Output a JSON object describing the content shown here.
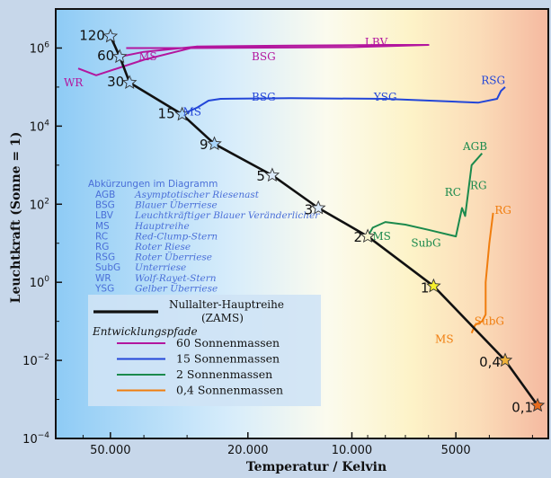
{
  "chart_data": {
    "type": "line",
    "xlabel": "Temperatur / Kelvin",
    "ylabel": "Leuchtkraft (Sonne = 1)",
    "x_scale": "log",
    "x_reversed": true,
    "xlim": [
      72000,
      2700
    ],
    "y_scale": "log",
    "ylim": [
      0.0001,
      10000000
    ],
    "x_ticks": [
      {
        "value": 50000,
        "label": "50.000"
      },
      {
        "value": 20000,
        "label": "20.000"
      },
      {
        "value": 10000,
        "label": "10.000"
      },
      {
        "value": 5000,
        "label": "5000"
      }
    ],
    "y_ticks": [
      {
        "exp": 6,
        "value": 1000000
      },
      {
        "exp": 4,
        "value": 10000
      },
      {
        "exp": 2,
        "value": 100
      },
      {
        "exp": 0,
        "value": 1
      },
      {
        "exp": -2,
        "value": 0.01
      },
      {
        "exp": -4,
        "value": 0.0001
      }
    ],
    "zams": {
      "name": "Nullalter-Hauptreihe (ZAMS)",
      "points": [
        {
          "mass": "120",
          "t": 50000,
          "l": 2000000
        },
        {
          "mass": "60",
          "t": 47000,
          "l": 600000
        },
        {
          "mass": "30",
          "t": 44000,
          "l": 130000
        },
        {
          "mass": "15",
          "t": 31000,
          "l": 20000
        },
        {
          "mass": "9",
          "t": 25000,
          "l": 3500
        },
        {
          "mass": "5",
          "t": 17000,
          "l": 550
        },
        {
          "mass": "3",
          "t": 12500,
          "l": 80
        },
        {
          "mass": "2",
          "t": 9000,
          "l": 15
        },
        {
          "mass": "1",
          "t": 5800,
          "l": 0.8
        },
        {
          "mass": "0,4",
          "t": 3600,
          "l": 0.01
        },
        {
          "mass": "0,1",
          "t": 2900,
          "l": 0.0007
        }
      ]
    },
    "tracks": [
      {
        "name": "60 Sonnenmassen",
        "color": "#b3169e",
        "points": [
          {
            "t": 47000,
            "l": 600000
          },
          {
            "t": 40000,
            "l": 800000
          },
          {
            "t": 28000,
            "l": 1100000
          },
          {
            "t": 15000,
            "l": 1150000
          },
          {
            "t": 8000,
            "l": 1200000
          },
          {
            "t": 6000,
            "l": 1200000
          },
          {
            "t": 10000,
            "l": 1050000
          },
          {
            "t": 30000,
            "l": 1000000
          },
          {
            "t": 45000,
            "l": 1000000
          }
        ]
      },
      {
        "name": "60 Sonnenmassen (WR-Ast)",
        "color": "#b3169e",
        "points": [
          {
            "t": 28000,
            "l": 1100000
          },
          {
            "t": 40000,
            "l": 500000
          },
          {
            "t": 55000,
            "l": 200000
          },
          {
            "t": 62000,
            "l": 300000
          }
        ]
      },
      {
        "name": "15 Sonnenmassen",
        "color": "#2346d8",
        "points": [
          {
            "t": 31000,
            "l": 20000
          },
          {
            "t": 28000,
            "l": 30000
          },
          {
            "t": 26000,
            "l": 45000
          },
          {
            "t": 24000,
            "l": 50000
          },
          {
            "t": 15000,
            "l": 52000
          },
          {
            "t": 8000,
            "l": 50000
          },
          {
            "t": 4300,
            "l": 40000
          },
          {
            "t": 3800,
            "l": 50000
          },
          {
            "t": 3700,
            "l": 80000
          },
          {
            "t": 3600,
            "l": 100000
          }
        ]
      },
      {
        "name": "2 Sonnenmassen",
        "color": "#1b8a4d",
        "points": [
          {
            "t": 9000,
            "l": 15
          },
          {
            "t": 8700,
            "l": 25
          },
          {
            "t": 8000,
            "l": 35
          },
          {
            "t": 7000,
            "l": 30
          },
          {
            "t": 6000,
            "l": 22
          },
          {
            "t": 5000,
            "l": 15
          },
          {
            "t": 4800,
            "l": 80
          },
          {
            "t": 4700,
            "l": 50
          },
          {
            "t": 4500,
            "l": 1000
          },
          {
            "t": 4200,
            "l": 2000
          }
        ]
      },
      {
        "name": "0,4 Sonnenmassen",
        "color": "#f07d0e",
        "points": [
          {
            "t": 4500,
            "l": 0.05
          },
          {
            "t": 4400,
            "l": 0.08
          },
          {
            "t": 4200,
            "l": 0.1
          },
          {
            "t": 4100,
            "l": 0.15
          },
          {
            "t": 4100,
            "l": 1
          },
          {
            "t": 4000,
            "l": 10
          },
          {
            "t": 3900,
            "l": 60
          }
        ]
      }
    ],
    "annotations": [
      {
        "text": "LBV",
        "t": 8500,
        "l": 1400000,
        "color": "#b3169e"
      },
      {
        "text": "MS",
        "t": 39000,
        "l": 600000,
        "color": "#b3169e"
      },
      {
        "text": "BSG",
        "t": 18000,
        "l": 600000,
        "color": "#b3169e"
      },
      {
        "text": "WR",
        "t": 64000,
        "l": 130000,
        "color": "#b3169e"
      },
      {
        "text": "BSG",
        "t": 18000,
        "l": 55000,
        "color": "#2346d8"
      },
      {
        "text": "YSG",
        "t": 8000,
        "l": 55000,
        "color": "#2346d8"
      },
      {
        "text": "RSG",
        "t": 3900,
        "l": 150000,
        "color": "#2346d8"
      },
      {
        "text": "MS",
        "t": 29000,
        "l": 23000,
        "color": "#2346d8"
      },
      {
        "text": "AGB",
        "t": 4400,
        "l": 3000,
        "color": "#1b8a4d"
      },
      {
        "text": "RG",
        "t": 4300,
        "l": 300,
        "color": "#1b8a4d"
      },
      {
        "text": "RC",
        "t": 5100,
        "l": 200,
        "color": "#1b8a4d"
      },
      {
        "text": "MS",
        "t": 8200,
        "l": 15,
        "color": "#1b8a4d"
      },
      {
        "text": "SubG",
        "t": 6100,
        "l": 10,
        "color": "#1b8a4d"
      },
      {
        "text": "RG",
        "t": 3650,
        "l": 70,
        "color": "#f07d0e"
      },
      {
        "text": "SubG",
        "t": 4000,
        "l": 0.1,
        "color": "#f07d0e"
      },
      {
        "text": "MS",
        "t": 5400,
        "l": 0.035,
        "color": "#f07d0e"
      }
    ]
  },
  "abbreviations": {
    "title": "Abkürzungen im Diagramm",
    "items": [
      {
        "abbr": "AGB",
        "text": "Asymptotischer Riesenast"
      },
      {
        "abbr": "BSG",
        "text": "Blauer Überriese"
      },
      {
        "abbr": "LBV",
        "text": "Leuchtkräftiger Blauer Veränderlicher"
      },
      {
        "abbr": "MS",
        "text": "Hauptreihe"
      },
      {
        "abbr": "RC",
        "text": "Red-Clump-Stern"
      },
      {
        "abbr": "RG",
        "text": "Roter Riese"
      },
      {
        "abbr": "RSG",
        "text": "Roter Überriese"
      },
      {
        "abbr": "SubG",
        "text": "Unterriese"
      },
      {
        "abbr": "WR",
        "text": "Wolf-Rayet-Stern"
      },
      {
        "abbr": "YSG",
        "text": "Gelber Überriese"
      }
    ]
  },
  "legend": {
    "zams_line1": "Nullalter-Hauptreihe",
    "zams_line2": "(ZAMS)",
    "tracks_title": "Entwicklungspfade",
    "tracks": [
      {
        "label": "60 Sonnenmassen",
        "color": "#b3169e"
      },
      {
        "label": "15 Sonnenmassen",
        "color": "#2346d8"
      },
      {
        "label": "2   Sonnenmassen",
        "color": "#1b8a4d"
      },
      {
        "label": "0,4 Sonnenmassen",
        "color": "#f07d0e"
      }
    ]
  }
}
